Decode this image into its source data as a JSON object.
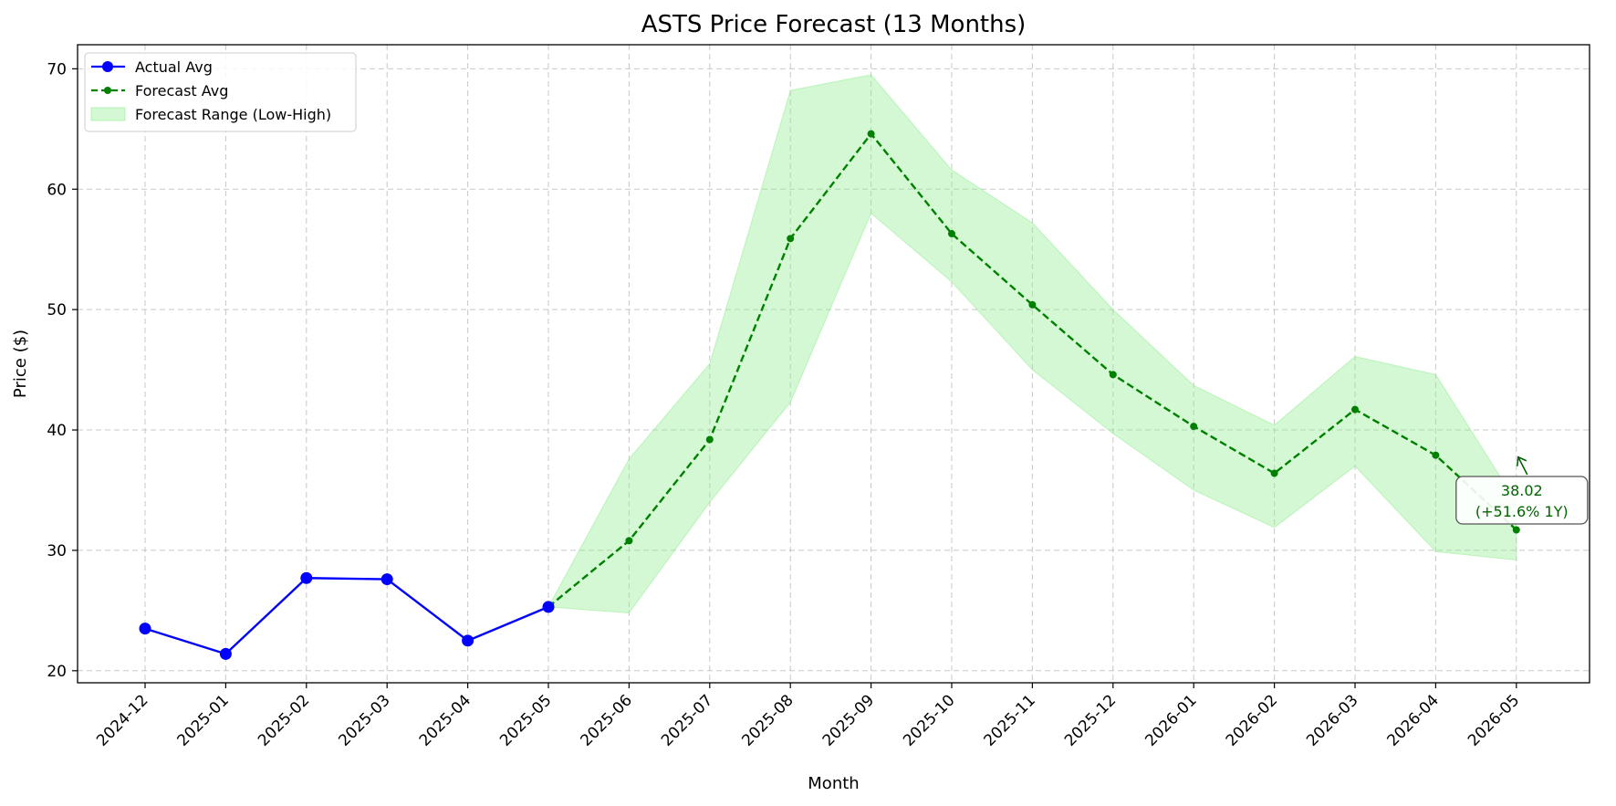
{
  "chart_data": {
    "type": "line",
    "title": "ASTS Price Forecast (13 Months)",
    "xlabel": "Month",
    "ylabel": "Price ($)",
    "ylim": [
      19,
      72
    ],
    "yticks": [
      20,
      30,
      40,
      50,
      60,
      70
    ],
    "grid": true,
    "legend_position": "top-left",
    "categories": [
      "2024-12",
      "2025-01",
      "2025-02",
      "2025-03",
      "2025-04",
      "2025-05",
      "2025-06",
      "2025-07",
      "2025-08",
      "2025-09",
      "2025-10",
      "2025-11",
      "2025-12",
      "2026-01",
      "2026-02",
      "2026-03",
      "2026-04",
      "2026-05"
    ],
    "series": [
      {
        "name": "Actual Avg",
        "color": "#0000ff",
        "x": [
          "2024-12",
          "2025-01",
          "2025-02",
          "2025-03",
          "2025-04",
          "2025-05"
        ],
        "values": [
          23.5,
          21.4,
          27.7,
          27.6,
          22.5,
          25.3
        ]
      },
      {
        "name": "Forecast Avg",
        "color": "#008000",
        "x": [
          "2025-05",
          "2025-06",
          "2025-07",
          "2025-08",
          "2025-09",
          "2025-10",
          "2025-11",
          "2025-12",
          "2026-01",
          "2026-02",
          "2026-03",
          "2026-04",
          "2026-05"
        ],
        "values": [
          25.3,
          30.8,
          39.2,
          55.9,
          64.6,
          56.3,
          50.4,
          44.6,
          40.3,
          36.4,
          41.7,
          37.9,
          31.7
        ]
      }
    ],
    "range": {
      "name": "Forecast Range (Low-High)",
      "color": "#90ee90",
      "x": [
        "2025-05",
        "2025-06",
        "2025-07",
        "2025-08",
        "2025-09",
        "2025-10",
        "2025-11",
        "2025-12",
        "2026-01",
        "2026-02",
        "2026-03",
        "2026-04",
        "2026-05"
      ],
      "low": [
        25.3,
        24.8,
        34.0,
        42.3,
        58.0,
        52.3,
        45.0,
        39.7,
        35.0,
        31.9,
        37.0,
        29.9,
        29.2
      ],
      "high": [
        25.3,
        37.6,
        45.5,
        68.2,
        69.5,
        61.6,
        57.2,
        50.0,
        43.7,
        40.4,
        46.1,
        44.6,
        34.0
      ]
    },
    "annotation": {
      "line1": "38.02",
      "line2": "(+51.6% 1Y)",
      "target_x": "2026-05",
      "target_y": 37.9
    }
  }
}
